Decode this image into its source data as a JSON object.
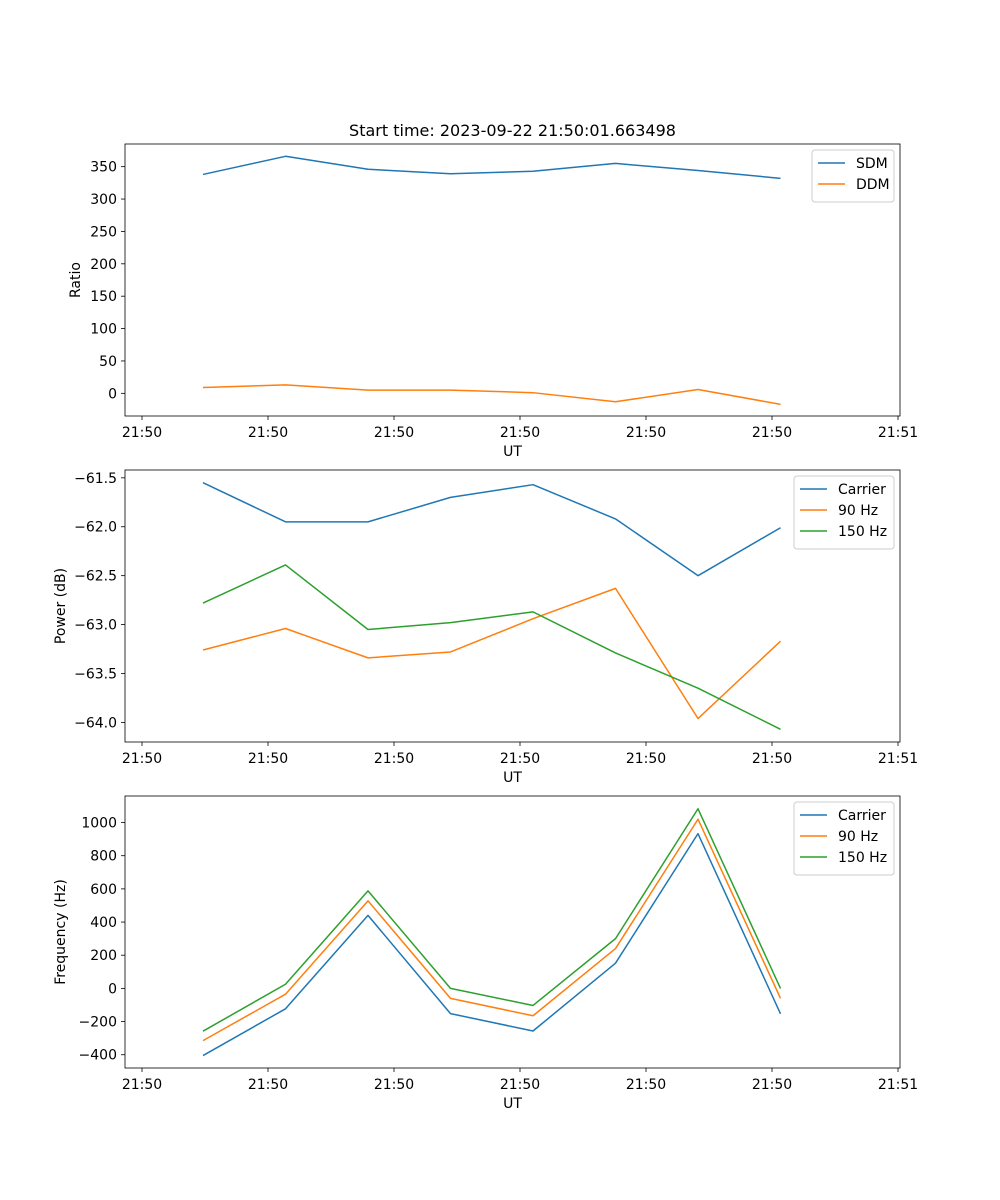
{
  "figure_title": "Start time: 2023-09-22 21:50:01.663498",
  "colors": {
    "c0": "#1f77b4",
    "c1": "#ff7f0e",
    "c2": "#2ca02c"
  },
  "chart_data": [
    {
      "type": "line",
      "title": "Start time: 2023-09-22 21:50:01.663498",
      "xlabel": "UT",
      "ylabel": "Ratio",
      "x_tick_labels": [
        "21:50",
        "21:50",
        "21:50",
        "21:50",
        "21:50",
        "21:50",
        "21:51"
      ],
      "x": [
        1,
        2,
        3,
        4,
        5,
        6,
        7,
        8
      ],
      "xlim": [
        0.2,
        9.4
      ],
      "ylim": [
        -35,
        385
      ],
      "y_ticks": [
        0,
        50,
        100,
        150,
        200,
        250,
        300,
        350
      ],
      "legend_loc": "upper right",
      "series": [
        {
          "name": "SDM",
          "color": "#1f77b4",
          "values": [
            338,
            366,
            346,
            339,
            343,
            355,
            344,
            332
          ]
        },
        {
          "name": "DDM",
          "color": "#ff7f0e",
          "values": [
            9,
            13,
            5,
            5,
            1,
            -13,
            6,
            -17
          ]
        }
      ]
    },
    {
      "type": "line",
      "title": "",
      "xlabel": "UT",
      "ylabel": "Power (dB)",
      "x_tick_labels": [
        "21:50",
        "21:50",
        "21:50",
        "21:50",
        "21:50",
        "21:50",
        "21:51"
      ],
      "x": [
        1,
        2,
        3,
        4,
        5,
        6,
        7,
        8
      ],
      "xlim": [
        0.2,
        9.4
      ],
      "ylim": [
        -64.2,
        -61.42
      ],
      "y_ticks": [
        -64.0,
        -63.5,
        -63.0,
        -62.5,
        -62.0,
        -61.5
      ],
      "y_tick_labels": [
        "−64.0",
        "−63.5",
        "−63.0",
        "−62.5",
        "−62.0",
        "−61.5"
      ],
      "legend_loc": "upper right",
      "series": [
        {
          "name": "Carrier",
          "color": "#1f77b4",
          "values": [
            -61.55,
            -61.95,
            -61.95,
            -61.7,
            -61.57,
            -61.92,
            -62.5,
            -62.01
          ]
        },
        {
          "name": "90 Hz",
          "color": "#ff7f0e",
          "values": [
            -63.26,
            -63.04,
            -63.34,
            -63.28,
            -62.94,
            -62.63,
            -63.96,
            -63.17
          ]
        },
        {
          "name": "150 Hz",
          "color": "#2ca02c",
          "values": [
            -62.78,
            -62.39,
            -63.05,
            -62.98,
            -62.87,
            -63.29,
            -63.65,
            -64.07
          ]
        }
      ]
    },
    {
      "type": "line",
      "title": "",
      "xlabel": "UT",
      "ylabel": "Frequency (Hz)",
      "x_tick_labels": [
        "21:50",
        "21:50",
        "21:50",
        "21:50",
        "21:50",
        "21:50",
        "21:51"
      ],
      "x": [
        1,
        2,
        3,
        4,
        5,
        6,
        7,
        8
      ],
      "xlim": [
        0.2,
        9.4
      ],
      "ylim": [
        -480,
        1160
      ],
      "y_ticks": [
        -400,
        -200,
        0,
        200,
        400,
        600,
        800,
        1000
      ],
      "y_tick_labels": [
        "−400",
        "−200",
        "0",
        "200",
        "400",
        "600",
        "800",
        "1000"
      ],
      "legend_loc": "upper right",
      "series": [
        {
          "name": "Carrier",
          "color": "#1f77b4",
          "values": [
            -405,
            -123,
            440,
            -152,
            -257,
            152,
            933,
            -153
          ]
        },
        {
          "name": "90 Hz",
          "color": "#ff7f0e",
          "values": [
            -315,
            -35,
            528,
            -60,
            -165,
            240,
            1020,
            -60
          ]
        },
        {
          "name": "150 Hz",
          "color": "#2ca02c",
          "values": [
            -258,
            25,
            588,
            0,
            -103,
            300,
            1083,
            0
          ]
        }
      ]
    }
  ]
}
